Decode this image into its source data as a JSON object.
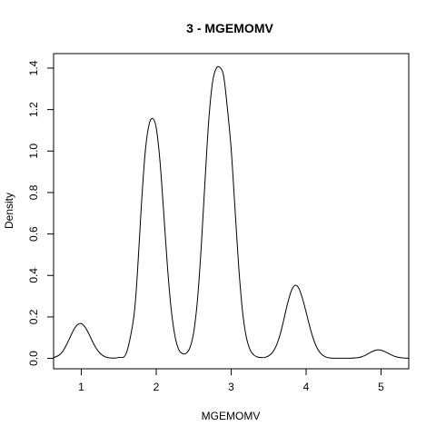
{
  "chart_data": {
    "type": "line",
    "title": "3 - MGEMOMV",
    "xlabel": "MGEMOMV",
    "ylabel": "Density",
    "xlim": [
      0.63,
      5.37
    ],
    "ylim": [
      -0.05,
      1.47
    ],
    "x_ticks": [
      1,
      2,
      3,
      4,
      5
    ],
    "x_tick_labels": [
      "1",
      "2",
      "3",
      "4",
      "5"
    ],
    "y_ticks": [
      0.0,
      0.2,
      0.4,
      0.6,
      0.8,
      1.0,
      1.2,
      1.4
    ],
    "y_tick_labels": [
      "0.0",
      "0.2",
      "0.4",
      "0.6",
      "0.8",
      "1.0",
      "1.2",
      "1.4"
    ],
    "grid": false,
    "series": [
      {
        "x": [
          0.63,
          0.7,
          0.75,
          0.8,
          0.85,
          0.9,
          0.95,
          1.0,
          1.05,
          1.1,
          1.15,
          1.2,
          1.25,
          1.3,
          1.35,
          1.4,
          1.45,
          1.5,
          1.6,
          1.7,
          1.75,
          1.8,
          1.85,
          1.9,
          1.95,
          2.0,
          2.05,
          2.1,
          2.15,
          2.2,
          2.25,
          2.3,
          2.35,
          2.4,
          2.45,
          2.5,
          2.55,
          2.6,
          2.65,
          2.7,
          2.75,
          2.8,
          2.85,
          2.9,
          2.95,
          3.0,
          3.05,
          3.1,
          3.15,
          3.2,
          3.25,
          3.3,
          3.35,
          3.4,
          3.45,
          3.5,
          3.55,
          3.6,
          3.65,
          3.7,
          3.75,
          3.8,
          3.85,
          3.9,
          3.95,
          4.0,
          4.05,
          4.1,
          4.15,
          4.2,
          4.25,
          4.3,
          4.35,
          4.4,
          4.5,
          4.6,
          4.7,
          4.75,
          4.8,
          4.85,
          4.9,
          4.95,
          5.0,
          5.05,
          5.1,
          5.15,
          5.2,
          5.25,
          5.3,
          5.37
        ],
        "y": [
          0.004,
          0.015,
          0.033,
          0.064,
          0.102,
          0.139,
          0.163,
          0.168,
          0.151,
          0.119,
          0.081,
          0.048,
          0.025,
          0.011,
          0.004,
          0.002,
          0.002,
          0.005,
          0.025,
          0.199,
          0.42,
          0.728,
          0.984,
          1.121,
          1.157,
          1.112,
          0.95,
          0.701,
          0.441,
          0.235,
          0.108,
          0.043,
          0.023,
          0.025,
          0.052,
          0.126,
          0.281,
          0.535,
          0.85,
          1.144,
          1.329,
          1.398,
          1.403,
          1.361,
          1.204,
          1.009,
          0.729,
          0.445,
          0.233,
          0.106,
          0.044,
          0.017,
          0.007,
          0.004,
          0.005,
          0.012,
          0.028,
          0.06,
          0.111,
          0.183,
          0.261,
          0.323,
          0.352,
          0.34,
          0.291,
          0.224,
          0.152,
          0.091,
          0.048,
          0.022,
          0.009,
          0.003,
          0.001,
          0.001,
          0.001,
          0.001,
          0.004,
          0.009,
          0.017,
          0.027,
          0.036,
          0.041,
          0.04,
          0.033,
          0.024,
          0.015,
          0.008,
          0.004,
          0.002,
          0.001
        ]
      }
    ]
  }
}
